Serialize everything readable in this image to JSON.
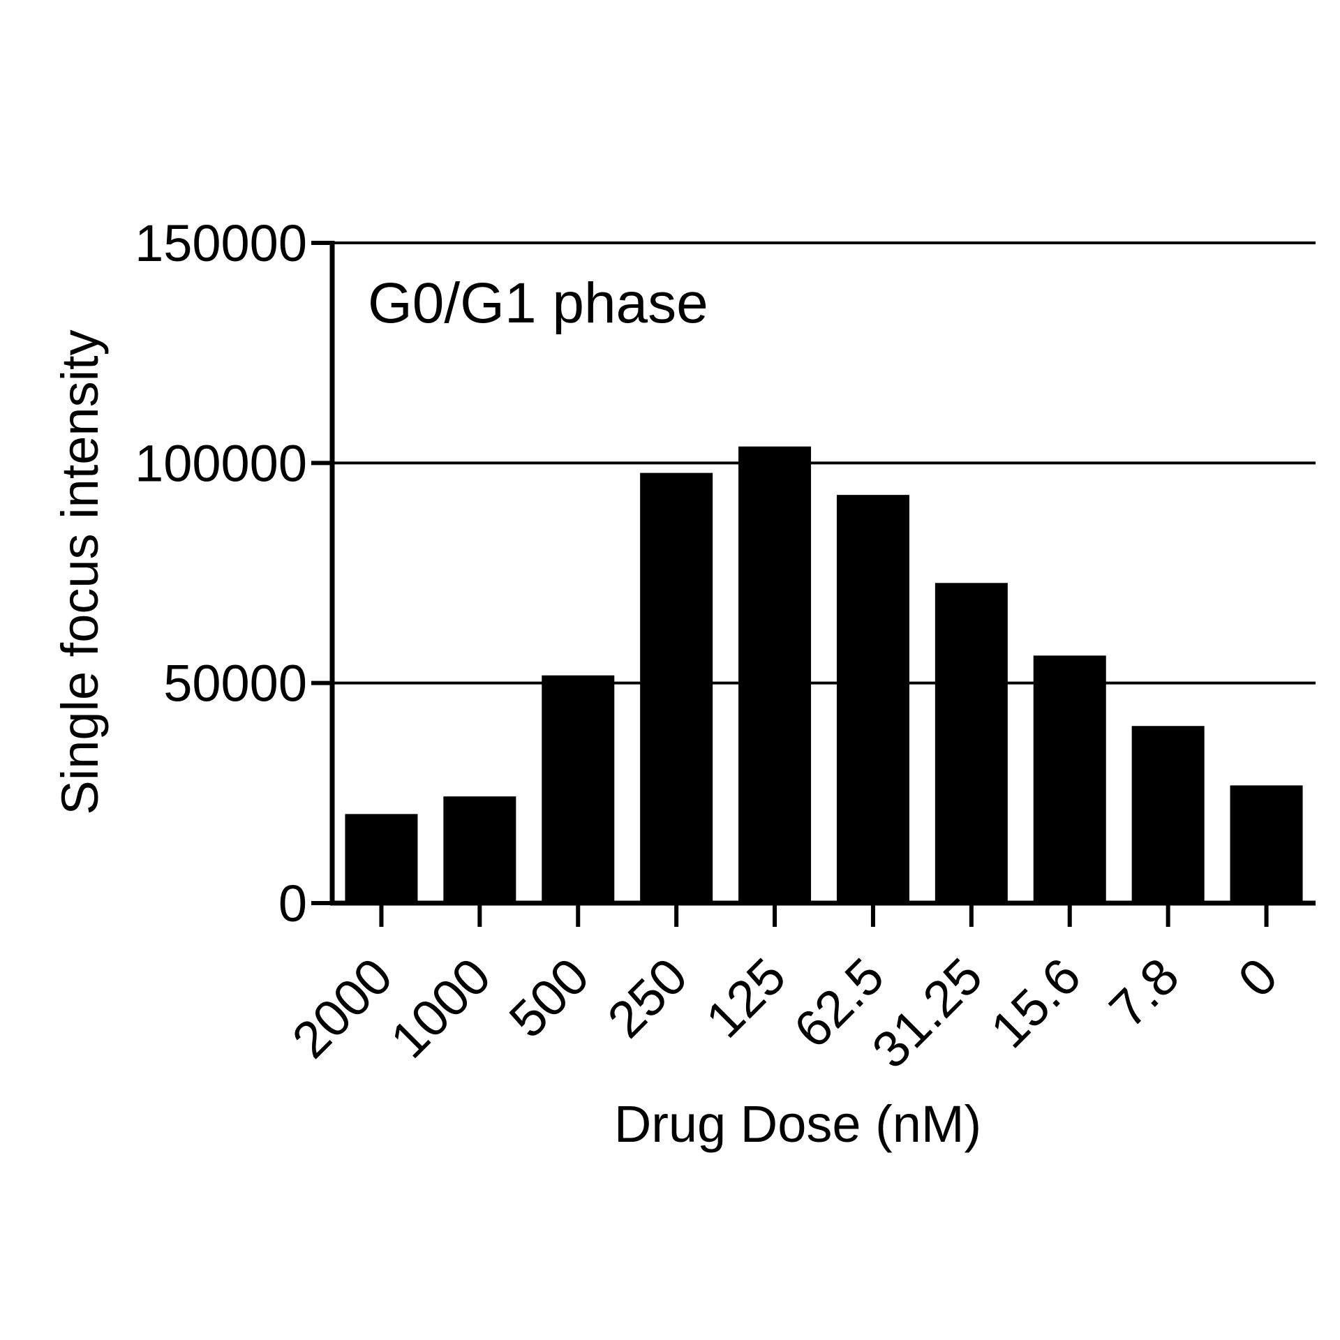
{
  "chart_data": {
    "type": "bar",
    "title": "",
    "annotation": "G0/G1 phase",
    "xlabel": "Drug Dose (nM)",
    "ylabel": "Single focus intensity",
    "categories": [
      "2000",
      "1000",
      "500",
      "250",
      "125",
      "62.5",
      "31.25",
      "15.6",
      "7.8",
      "0"
    ],
    "values": [
      20000,
      24000,
      51500,
      97500,
      103500,
      92500,
      72500,
      56000,
      40000,
      26500
    ],
    "ylim": [
      0,
      150000
    ],
    "yticks": [
      "0",
      "50000",
      "100000",
      "150000"
    ],
    "grid": true,
    "legend": "none",
    "colors": {
      "bar": "#000000",
      "axis": "#000000",
      "grid": "#000000",
      "background": "#ffffff"
    }
  }
}
